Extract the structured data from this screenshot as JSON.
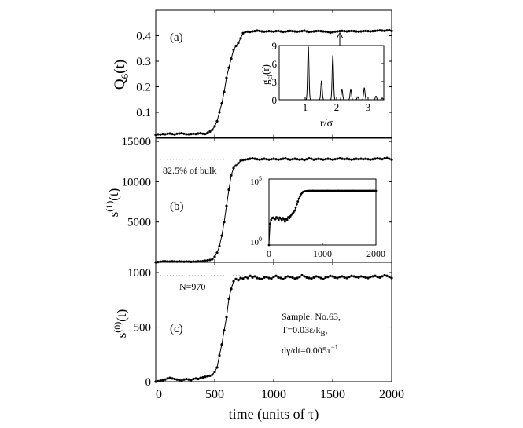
{
  "chart_data": [
    {
      "id": "a",
      "type": "line",
      "panel_label": "(a)",
      "ylabel": {
        "base": "Q",
        "sub": "6",
        "tail": "(t)"
      },
      "xlim": [
        0,
        2000
      ],
      "ylim": [
        0,
        0.5
      ],
      "yticks": [
        0.1,
        0.2,
        0.3,
        0.4
      ],
      "ytick_labels": [
        "0.1",
        "0.2",
        "0.3",
        "0.4"
      ],
      "xticks": [
        500,
        1000,
        1500
      ],
      "x_start": 0,
      "x_step": 20,
      "values": [
        0.012,
        0.014,
        0.013,
        0.015,
        0.014,
        0.016,
        0.017,
        0.015,
        0.013,
        0.016,
        0.017,
        0.018,
        0.016,
        0.014,
        0.014,
        0.015,
        0.016,
        0.015,
        0.017,
        0.018,
        0.016,
        0.015,
        0.02,
        0.025,
        0.032,
        0.045,
        0.065,
        0.1,
        0.135,
        0.18,
        0.235,
        0.275,
        0.31,
        0.345,
        0.36,
        0.372,
        0.39,
        0.41,
        0.415,
        0.416,
        0.415,
        0.417,
        0.418,
        0.42,
        0.419,
        0.417,
        0.416,
        0.417,
        0.418,
        0.417,
        0.416,
        0.418,
        0.419,
        0.417,
        0.415,
        0.416,
        0.418,
        0.419,
        0.418,
        0.417,
        0.416,
        0.417,
        0.418,
        0.42,
        0.417,
        0.415,
        0.416,
        0.417,
        0.418,
        0.419,
        0.418,
        0.417,
        0.416,
        0.415,
        0.412,
        0.414,
        0.416,
        0.417,
        0.418,
        0.419,
        0.418,
        0.417,
        0.418,
        0.419,
        0.418,
        0.417,
        0.416,
        0.417,
        0.418,
        0.419,
        0.418,
        0.417,
        0.418,
        0.419,
        0.42,
        0.421,
        0.42,
        0.419,
        0.421,
        0.422,
        0.419
      ]
    },
    {
      "id": "a-inset",
      "type": "line",
      "ylabel": {
        "base": "g",
        "sub": "cl",
        "tail": "(r)"
      },
      "xlabel": "r/σ",
      "xlim": [
        0.175,
        3.5
      ],
      "ylim": [
        0,
        9
      ],
      "xticks": [
        1,
        2,
        3
      ],
      "xtick_labels": [
        "1",
        "2",
        "3"
      ],
      "yticks": [
        0,
        3,
        6,
        9
      ],
      "ytick_labels": [
        "0",
        "3",
        "6",
        "9"
      ],
      "peaks": [
        {
          "r": 1.1,
          "g": 9.0
        },
        {
          "r": 1.52,
          "g": 3.2
        },
        {
          "r": 1.88,
          "g": 7.5
        },
        {
          "r": 2.17,
          "g": 1.8
        },
        {
          "r": 2.45,
          "g": 1.8
        },
        {
          "r": 2.67,
          "g": 0.5
        },
        {
          "r": 2.88,
          "g": 2.0
        },
        {
          "r": 3.25,
          "g": 0.6
        },
        {
          "r": 3.45,
          "g": 0.3
        }
      ]
    },
    {
      "id": "b",
      "type": "line",
      "panel_label": "(b)",
      "ylabel": {
        "base": "s",
        "sup": "(1)",
        "tail": "(t)"
      },
      "xlim": [
        0,
        2000
      ],
      "ylim": [
        0,
        15400
      ],
      "yticks": [
        5000,
        10000,
        15000
      ],
      "ytick_labels": [
        "5000",
        "10000",
        "15000"
      ],
      "xticks": [
        500,
        1000,
        1500
      ],
      "reference_line": {
        "y": 12800,
        "label": "82.5% of bulk"
      },
      "x_start": 0,
      "x_step": 20,
      "values": [
        1,
        40,
        80,
        110,
        120,
        100,
        90,
        130,
        110,
        80,
        120,
        100,
        70,
        110,
        90,
        60,
        100,
        80,
        130,
        110,
        150,
        200,
        250,
        300,
        400,
        700,
        1200,
        2000,
        3300,
        5000,
        7000,
        9000,
        10800,
        11700,
        12000,
        12300,
        12600,
        12700,
        12750,
        12800,
        12850,
        12900,
        12850,
        12800,
        12750,
        12800,
        12850,
        12800,
        12750,
        12800,
        12850,
        12800,
        12750,
        12800,
        12850,
        12900,
        12800,
        12750,
        12800,
        12850,
        12800,
        12750,
        12800,
        12700,
        12800,
        12900,
        12850,
        12750,
        12800,
        12850,
        12800,
        12750,
        12800,
        12850,
        12800,
        12750,
        12800,
        12850,
        12900,
        12850,
        12800,
        12850,
        12800,
        12750,
        12800,
        12850,
        12800,
        12850,
        12800,
        12850,
        12800,
        12750,
        12800,
        12850,
        12900,
        12850,
        12800,
        12900,
        12950,
        12850,
        12750
      ]
    },
    {
      "id": "b-inset",
      "type": "line",
      "yscale": "log",
      "xlim": [
        0,
        2000
      ],
      "ylim": [
        1,
        100000
      ],
      "xticks": [
        0,
        1000,
        2000
      ],
      "xtick_labels": [
        "0",
        "1000",
        "2000"
      ],
      "ytick_labels": [
        {
          "base": "10",
          "exp": "0"
        },
        {
          "base": "10",
          "exp": "5"
        }
      ]
    },
    {
      "id": "c",
      "type": "line",
      "panel_label": "(c)",
      "ylabel": {
        "base": "s",
        "sup": "(0)",
        "tail": "(t)"
      },
      "xlabel": "time (units of τ)",
      "xlim": [
        0,
        2000
      ],
      "ylim": [
        0,
        1094
      ],
      "yticks": [
        0,
        500,
        1000
      ],
      "ytick_labels": [
        "0",
        "500",
        "1000"
      ],
      "xticks": [
        0,
        500,
        1000,
        1500,
        2000
      ],
      "xtick_labels": [
        "0",
        "500",
        "1000",
        "1500",
        "2000"
      ],
      "reference_line": {
        "y": 970,
        "label": "N=970"
      },
      "annotation": {
        "line1": "Sample: No.63,",
        "line2_main": "T=0.03ε/k",
        "line2_sub": "B",
        "line2_tail": ",",
        "line3_main": "dγ/dt=0.005τ",
        "line3_sup": "−1"
      },
      "x_start": 0,
      "x_step": 20,
      "values": [
        0,
        5,
        10,
        15,
        20,
        30,
        35,
        30,
        25,
        20,
        15,
        10,
        20,
        25,
        20,
        15,
        25,
        30,
        25,
        35,
        40,
        45,
        50,
        55,
        65,
        90,
        130,
        240,
        340,
        470,
        590,
        760,
        850,
        920,
        940,
        930,
        950,
        945,
        960,
        950,
        970,
        955,
        965,
        950,
        945,
        940,
        955,
        960,
        950,
        945,
        960,
        970,
        955,
        950,
        940,
        955,
        965,
        960,
        955,
        945,
        950,
        960,
        975,
        965,
        955,
        950,
        945,
        955,
        965,
        960,
        950,
        940,
        955,
        960,
        970,
        965,
        955,
        950,
        960,
        965,
        955,
        950,
        960,
        970,
        965,
        960,
        955,
        965,
        960,
        955,
        950,
        960,
        965,
        970,
        960,
        955,
        965,
        975,
        970,
        960,
        950
      ]
    }
  ]
}
